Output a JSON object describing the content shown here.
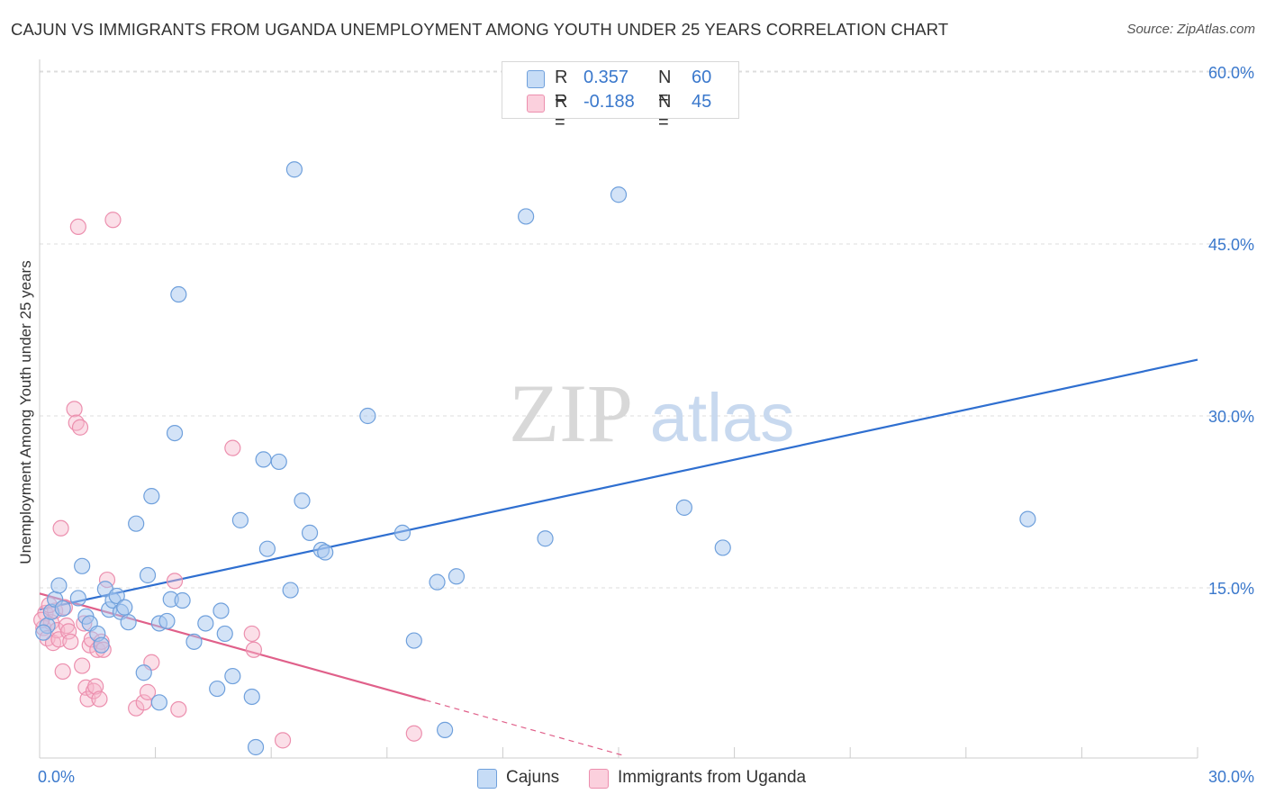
{
  "title": "CAJUN VS IMMIGRANTS FROM UGANDA UNEMPLOYMENT AMONG YOUTH UNDER 25 YEARS CORRELATION CHART",
  "source": "Source: ZipAtlas.com",
  "watermark": {
    "zip": "ZIP",
    "atlas": "atlas"
  },
  "colors": {
    "blue_fill": "#a8c8f0",
    "blue_stroke": "#6fa0dc",
    "blue_line": "#2f6fd0",
    "pink_fill": "#f6b8cc",
    "pink_stroke": "#ec8fae",
    "pink_line": "#e0608a",
    "axis_text": "#3a78cc",
    "grid": "#dddddd"
  },
  "legend": {
    "series1": {
      "r_label": "R =",
      "r_value": "0.357",
      "n_label": "N =",
      "n_value": "60"
    },
    "series2": {
      "r_label": "R =",
      "r_value": "-0.188",
      "n_label": "N =",
      "n_value": "45"
    }
  },
  "chart_data": {
    "type": "scatter",
    "title": "CAJUN VS IMMIGRANTS FROM UGANDA UNEMPLOYMENT AMONG YOUTH UNDER 25 YEARS CORRELATION CHART",
    "xlabel": "",
    "ylabel": "Unemployment Among Youth under 25 years",
    "xlim": [
      0,
      30
    ],
    "ylim": [
      0,
      60
    ],
    "x_tick_labels": [
      "0.0%",
      "30.0%"
    ],
    "y_tick_labels": [
      {
        "value": 15,
        "label": "15.0%"
      },
      {
        "value": 30,
        "label": "30.0%"
      },
      {
        "value": 45,
        "label": "45.0%"
      },
      {
        "value": 60,
        "label": "60.0%"
      }
    ],
    "series": [
      {
        "name": "Cajuns",
        "color": "#a8c8f0",
        "trend": {
          "x": [
            0,
            30
          ],
          "y": [
            13.1,
            34.9
          ]
        },
        "points": [
          [
            0.2,
            11.7
          ],
          [
            0.3,
            12.9
          ],
          [
            0.4,
            14.0
          ],
          [
            0.5,
            15.2
          ],
          [
            0.6,
            13.2
          ],
          [
            1.0,
            14.1
          ],
          [
            1.1,
            16.9
          ],
          [
            1.2,
            12.5
          ],
          [
            1.3,
            11.9
          ],
          [
            1.5,
            11.0
          ],
          [
            1.6,
            10.0
          ],
          [
            1.7,
            14.9
          ],
          [
            1.8,
            13.1
          ],
          [
            1.9,
            13.9
          ],
          [
            2.0,
            14.3
          ],
          [
            2.1,
            12.9
          ],
          [
            2.2,
            13.3
          ],
          [
            2.3,
            12.0
          ],
          [
            2.5,
            20.6
          ],
          [
            2.7,
            7.6
          ],
          [
            2.8,
            16.1
          ],
          [
            2.9,
            23.0
          ],
          [
            3.1,
            5.0
          ],
          [
            3.1,
            11.9
          ],
          [
            3.3,
            12.1
          ],
          [
            3.4,
            14.0
          ],
          [
            3.5,
            28.5
          ],
          [
            3.6,
            40.6
          ],
          [
            3.7,
            13.9
          ],
          [
            4.0,
            10.3
          ],
          [
            4.3,
            11.9
          ],
          [
            4.6,
            6.2
          ],
          [
            4.7,
            13.0
          ],
          [
            4.8,
            11.0
          ],
          [
            5.0,
            7.3
          ],
          [
            5.2,
            20.9
          ],
          [
            5.5,
            5.5
          ],
          [
            5.6,
            1.1
          ],
          [
            5.8,
            26.2
          ],
          [
            5.9,
            18.4
          ],
          [
            6.2,
            26.0
          ],
          [
            6.5,
            14.8
          ],
          [
            6.6,
            51.5
          ],
          [
            6.8,
            22.6
          ],
          [
            7.0,
            19.8
          ],
          [
            7.3,
            18.3
          ],
          [
            7.4,
            18.1
          ],
          [
            8.5,
            30.0
          ],
          [
            9.4,
            19.8
          ],
          [
            9.7,
            10.4
          ],
          [
            10.3,
            15.5
          ],
          [
            10.5,
            2.6
          ],
          [
            10.8,
            16.0
          ],
          [
            12.6,
            47.4
          ],
          [
            13.1,
            19.3
          ],
          [
            15.0,
            49.3
          ],
          [
            16.7,
            22.0
          ],
          [
            17.7,
            18.5
          ],
          [
            25.6,
            21.0
          ],
          [
            0.1,
            11.1
          ]
        ]
      },
      {
        "name": "Immigrants from Uganda",
        "color": "#f6b8cc",
        "trend": {
          "x": [
            0,
            10
          ],
          "y": [
            14.5,
            5.2
          ]
        },
        "trend_dashed": {
          "x": [
            10,
            15.1
          ],
          "y": [
            5.2,
            0.4
          ]
        },
        "points": [
          [
            0.1,
            11.5
          ],
          [
            0.15,
            12.8
          ],
          [
            0.2,
            10.6
          ],
          [
            0.3,
            12.0
          ],
          [
            0.35,
            10.2
          ],
          [
            0.4,
            13.0
          ],
          [
            0.45,
            11.3
          ],
          [
            0.5,
            10.5
          ],
          [
            0.55,
            20.2
          ],
          [
            0.6,
            7.7
          ],
          [
            0.65,
            13.3
          ],
          [
            0.7,
            11.7
          ],
          [
            0.75,
            11.2
          ],
          [
            0.8,
            10.3
          ],
          [
            0.9,
            30.6
          ],
          [
            0.95,
            29.4
          ],
          [
            1.0,
            46.5
          ],
          [
            1.05,
            29.0
          ],
          [
            1.1,
            8.2
          ],
          [
            1.15,
            11.9
          ],
          [
            1.2,
            6.3
          ],
          [
            1.25,
            5.3
          ],
          [
            1.3,
            10.0
          ],
          [
            1.35,
            10.5
          ],
          [
            1.4,
            6.0
          ],
          [
            1.45,
            6.4
          ],
          [
            1.5,
            9.6
          ],
          [
            1.55,
            5.3
          ],
          [
            1.6,
            10.3
          ],
          [
            1.65,
            9.6
          ],
          [
            1.75,
            15.7
          ],
          [
            1.9,
            47.1
          ],
          [
            2.5,
            4.5
          ],
          [
            2.7,
            5.0
          ],
          [
            2.8,
            5.9
          ],
          [
            2.9,
            8.5
          ],
          [
            3.5,
            15.6
          ],
          [
            3.6,
            4.4
          ],
          [
            5.0,
            27.2
          ],
          [
            5.5,
            11.0
          ],
          [
            5.55,
            9.6
          ],
          [
            6.3,
            1.7
          ],
          [
            9.7,
            2.3
          ],
          [
            0.05,
            12.2
          ],
          [
            0.25,
            13.5
          ]
        ]
      }
    ]
  },
  "bottom_legend": [
    {
      "label": "Cajuns"
    },
    {
      "label": "Immigrants from Uganda"
    }
  ]
}
